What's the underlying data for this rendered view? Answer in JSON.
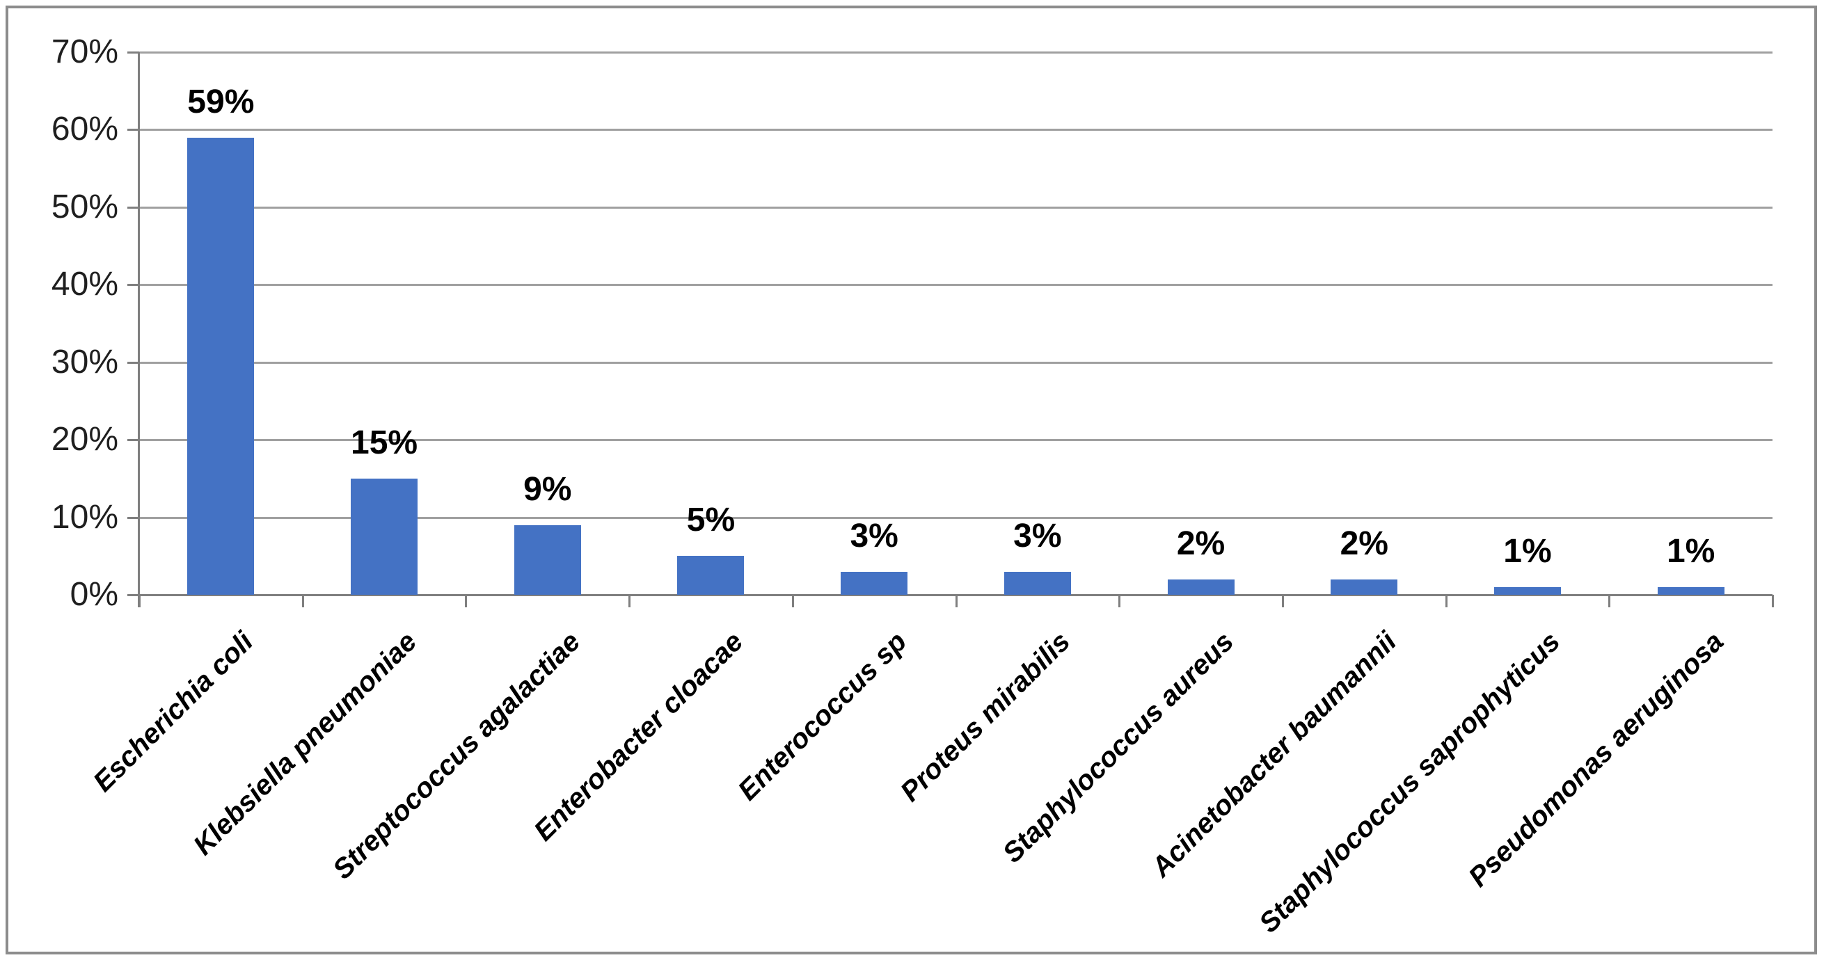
{
  "chart_data": {
    "type": "bar",
    "title": "",
    "xlabel": "",
    "ylabel": "",
    "categories": [
      "Escherichia coli",
      "Klebsiella pneumoniae",
      "Streptococcus agalactiae",
      "Enterobacter cloacae",
      "Enterococcus sp",
      "Proteus mirabilis",
      "Staphylococcus aureus",
      "Acinetobacter baumannii",
      "Staphylococcus saprophyticus",
      "Pseudomonas aeruginosa"
    ],
    "values": [
      59,
      15,
      9,
      5,
      3,
      3,
      2,
      2,
      1,
      1
    ],
    "value_labels": [
      "59%",
      "15%",
      "9%",
      "5%",
      "3%",
      "3%",
      "2%",
      "2%",
      "1%",
      "1%"
    ],
    "y_tick_values": [
      0,
      10,
      20,
      30,
      40,
      50,
      60,
      70
    ],
    "y_tick_labels": [
      "0%",
      "10%",
      "20%",
      "30%",
      "40%",
      "50%",
      "60%",
      "70%"
    ],
    "ylim": [
      0,
      70
    ],
    "grid": "horizontal",
    "legend": "none",
    "colors": {
      "bar": "#4472C4",
      "gridline": "#A0A0A0",
      "axis": "#7F7F7F",
      "frame_border": "#8C8C8C",
      "value_label": "#000000",
      "category_label": "#000000",
      "y_tick_label": "#1F1F1F",
      "background": "#FFFFFF"
    }
  }
}
